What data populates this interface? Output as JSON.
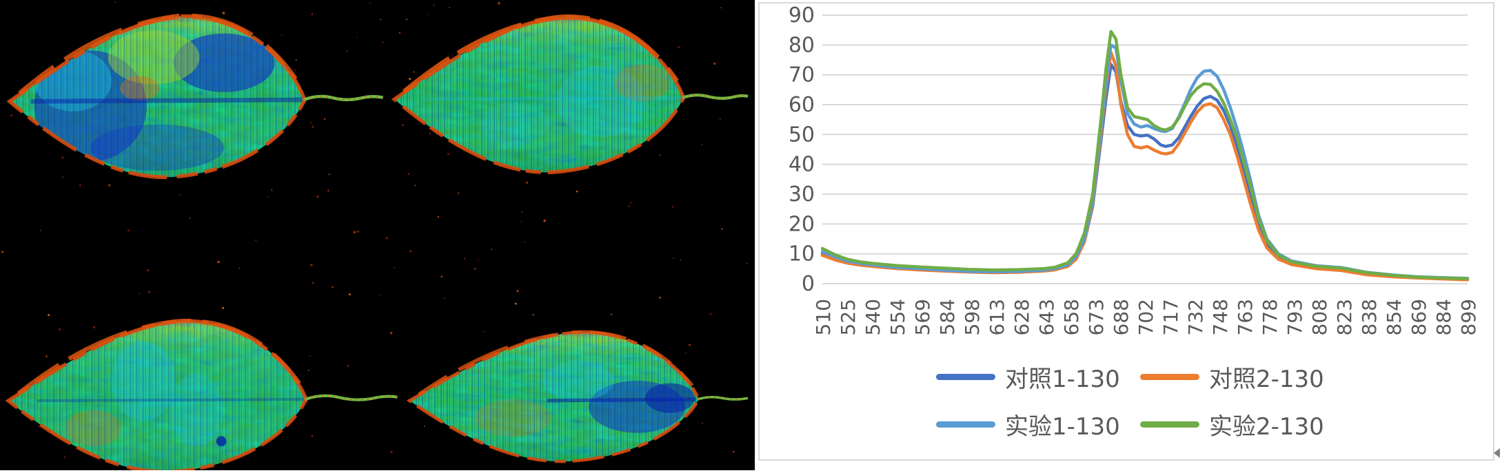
{
  "leaf_panel": {
    "background_color": "#000000",
    "leaves": [
      "top-left",
      "top-right",
      "bottom-left",
      "bottom-right"
    ],
    "palette": {
      "leaf_green": "#2db84d",
      "cyan_patch": "#1ec8e0",
      "blue_patch": "#1334cc",
      "edge_red": "#d84a0c",
      "speckle_orange": "#d2691e"
    }
  },
  "chart": {
    "panel_background": "#ffffff",
    "border_color": "#d9d9d9",
    "grid_color": "#d9d9d9",
    "axis_label_color": "#595959",
    "legend_label_color": "#595959"
  },
  "icons": {
    "collapse_arrow_icon": "◀"
  },
  "chart_data": {
    "type": "line",
    "title": "",
    "xlabel": "",
    "ylabel": "",
    "ylim": [
      0,
      90
    ],
    "ytick_interval": 10,
    "grid": "horizontal-only",
    "legend_position": "bottom",
    "xtick_labels": [
      "510",
      "525",
      "540",
      "554",
      "569",
      "584",
      "598",
      "613",
      "628",
      "643",
      "658",
      "673",
      "688",
      "702",
      "717",
      "732",
      "748",
      "763",
      "778",
      "793",
      "808",
      "823",
      "838",
      "854",
      "869",
      "884",
      "899"
    ],
    "x": [
      510,
      518,
      525,
      533,
      540,
      554,
      569,
      584,
      598,
      613,
      628,
      643,
      650,
      658,
      663,
      668,
      673,
      678,
      681,
      684,
      687,
      690,
      694,
      698,
      702,
      706,
      710,
      714,
      717,
      721,
      725,
      729,
      732,
      736,
      740,
      744,
      748,
      752,
      756,
      760,
      763,
      768,
      773,
      778,
      785,
      793,
      808,
      823,
      838,
      854,
      869,
      884,
      899
    ],
    "series": [
      {
        "name": "对照1-130",
        "color": "#4472C4",
        "values": [
          10.0,
          8.3,
          7.2,
          6.5,
          6.0,
          5.3,
          4.8,
          4.4,
          4.0,
          3.9,
          4.0,
          4.4,
          4.8,
          6.0,
          8.5,
          14,
          26,
          48,
          62,
          73.5,
          71,
          61,
          53,
          50,
          49.5,
          49.8,
          48.5,
          46.5,
          46.0,
          46.5,
          49,
          53,
          56,
          59.5,
          62,
          62.8,
          61.5,
          58,
          53,
          46,
          40,
          30,
          20,
          13.5,
          9,
          7.0,
          5.6,
          5.0,
          3.5,
          2.6,
          2.1,
          1.8,
          1.6
        ]
      },
      {
        "name": "对照2-130",
        "color": "#ED7D31",
        "values": [
          9.5,
          7.9,
          6.9,
          6.2,
          5.8,
          5.1,
          4.6,
          4.2,
          3.9,
          3.7,
          3.8,
          4.2,
          4.6,
          5.8,
          8.2,
          14,
          27,
          50,
          66,
          77.5,
          73,
          60,
          50,
          46,
          45.5,
          46.0,
          44.8,
          43.8,
          43.5,
          44,
          47,
          51,
          54,
          57.5,
          59.8,
          60.3,
          59,
          55,
          50,
          43,
          37,
          27,
          18,
          12,
          8.2,
          6.4,
          5.0,
          4.4,
          3.0,
          2.3,
          1.9,
          1.6,
          1.3
        ]
      },
      {
        "name": "实验1-130",
        "color": "#5B9BD5",
        "values": [
          10.8,
          8.9,
          7.6,
          6.8,
          6.3,
          5.5,
          5.0,
          4.5,
          4.1,
          4.0,
          4.1,
          4.5,
          5.0,
          6.3,
          9,
          15,
          28,
          52,
          68,
          80,
          79,
          68,
          57,
          53.5,
          52.5,
          53,
          52,
          51.2,
          51.0,
          52,
          56,
          61,
          65,
          69,
          71.2,
          71.5,
          69.5,
          65,
          59,
          52,
          46,
          35,
          23,
          15,
          10,
          7.6,
          6.0,
          5.4,
          3.8,
          2.9,
          2.3,
          2.0,
          1.8
        ]
      },
      {
        "name": "实验2-130",
        "color": "#70AD47",
        "values": [
          11.8,
          9.6,
          8.2,
          7.3,
          6.8,
          6.1,
          5.6,
          5.2,
          4.8,
          4.6,
          4.7,
          5.0,
          5.5,
          7.0,
          10,
          17,
          30,
          55,
          72,
          84.5,
          82,
          70,
          59,
          56,
          55.5,
          55,
          53,
          51.8,
          51.5,
          52.5,
          55.5,
          60,
          63,
          65.5,
          67,
          66.8,
          64.5,
          60.5,
          55,
          49,
          43,
          33,
          22,
          14.5,
          9.6,
          7.3,
          5.8,
          5.2,
          3.7,
          2.8,
          2.2,
          1.9,
          1.7
        ]
      }
    ]
  }
}
